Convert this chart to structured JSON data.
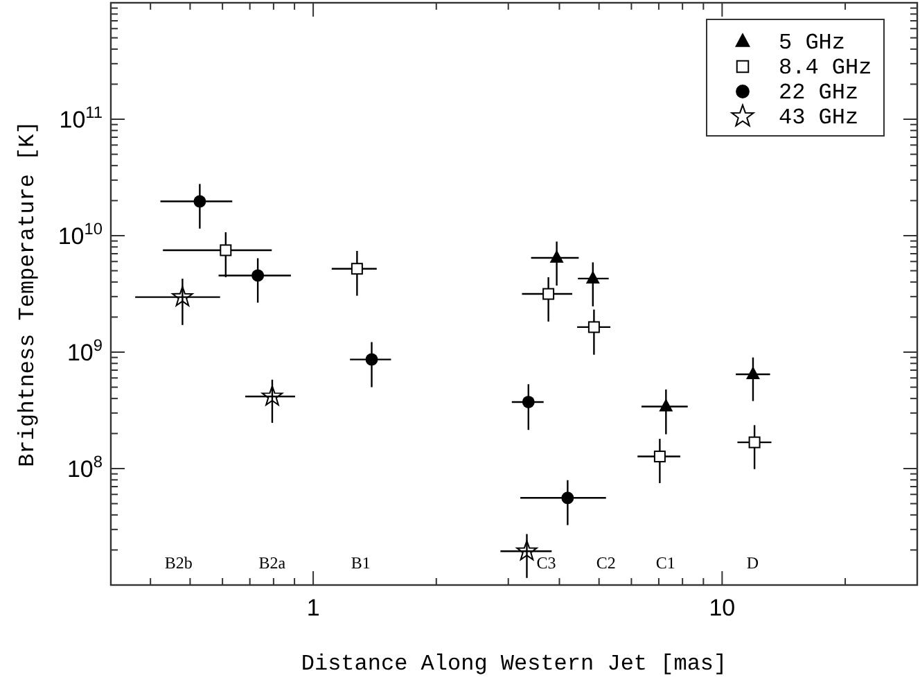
{
  "chart_data": {
    "type": "scatter",
    "xlabel": "Distance Along Western Jet [mas]",
    "ylabel": "Brightness Temperature [K]",
    "log": "xy",
    "xlim": [
      0.32,
      30
    ],
    "ylim": [
      10000000.0,
      1000000000000.0
    ],
    "xticks": [
      {
        "value": 0.4,
        "label": null
      },
      {
        "value": 0.5,
        "label": null
      },
      {
        "value": 0.6,
        "label": null
      },
      {
        "value": 0.7,
        "label": null
      },
      {
        "value": 0.8,
        "label": null
      },
      {
        "value": 0.9,
        "label": null
      },
      1,
      {
        "value": 2,
        "label": null
      },
      {
        "value": 3,
        "label": null
      },
      {
        "value": 4,
        "label": null
      },
      {
        "value": 5,
        "label": null
      },
      {
        "value": 6,
        "label": null
      },
      {
        "value": 7,
        "label": null
      },
      {
        "value": 8,
        "label": null
      },
      {
        "value": 9,
        "label": null
      },
      10,
      {
        "value": 20,
        "label": null
      },
      {
        "value": 30,
        "label": null
      }
    ],
    "yticks": [
      {
        "value": 20000000.0,
        "label": null
      },
      {
        "value": 30000000.0,
        "label": null
      },
      {
        "value": 40000000.0,
        "label": null
      },
      {
        "value": 50000000.0,
        "label": null
      },
      {
        "value": 60000000.0,
        "label": null
      },
      {
        "value": 70000000.0,
        "label": null
      },
      {
        "value": 80000000.0,
        "label": null
      },
      {
        "value": 90000000.0,
        "label": null
      },
      {
        "value": 100000000.0,
        "label": "10$^{8}$"
      },
      {
        "value": 200000000.0,
        "label": null
      },
      {
        "value": 300000000.0,
        "label": null
      },
      {
        "value": 400000000.0,
        "label": null
      },
      {
        "value": 500000000.0,
        "label": null
      },
      {
        "value": 600000000.0,
        "label": null
      },
      {
        "value": 700000000.0,
        "label": null
      },
      {
        "value": 800000000.0,
        "label": null
      },
      {
        "value": 900000000.0,
        "label": null
      },
      {
        "value": 1000000000.0,
        "label": "10$^{9}$"
      },
      {
        "value": 2000000000.0,
        "label": null
      },
      {
        "value": 3000000000.0,
        "label": null
      },
      {
        "value": 4000000000.0,
        "label": null
      },
      {
        "value": 5000000000.0,
        "label": null
      },
      {
        "value": 6000000000.0,
        "label": null
      },
      {
        "value": 7000000000.0,
        "label": null
      },
      {
        "value": 8000000000.0,
        "label": null
      },
      {
        "value": 9000000000.0,
        "label": null
      },
      {
        "value": 10000000000.0,
        "label": "10$^{10}$"
      },
      {
        "value": 20000000000.0,
        "label": null
      },
      {
        "value": 30000000000.0,
        "label": null
      },
      {
        "value": 40000000000.0,
        "label": null
      },
      {
        "value": 50000000000.0,
        "label": null
      },
      {
        "value": 60000000000.0,
        "label": null
      },
      {
        "value": 70000000000.0,
        "label": null
      },
      {
        "value": 80000000000.0,
        "label": null
      },
      {
        "value": 90000000000.0,
        "label": null
      },
      {
        "value": 100000000000.0,
        "label": "10$^{11}$"
      },
      {
        "value": 200000000000.0,
        "label": null
      },
      {
        "value": 300000000000.0,
        "label": null
      },
      {
        "value": 400000000000.0,
        "label": null
      },
      {
        "value": 500000000000.0,
        "label": null
      },
      {
        "value": 600000000000.0,
        "label": null
      },
      {
        "value": 700000000000.0,
        "label": null
      },
      {
        "value": 800000000000.0,
        "label": null
      },
      {
        "value": 900000000000.0,
        "label": null
      }
    ],
    "grid": false,
    "legend": "top right",
    "series": [
      {
        "name": "5 GHz",
        "color": "#000000",
        "marker": "triangle",
        "x": [
          3.94,
          4.83,
          7.29,
          11.9
        ],
        "values": [
          6450000000.0,
          4280000000.0,
          341000000.0,
          645000000.0
        ],
        "errors": [
          [
            3730000000.0,
            8900000000.0
          ],
          [
            2470000000.0,
            5900000000.0
          ],
          [
            197000000.0,
            478000000.0
          ],
          [
            380000000.0,
            900000000.0
          ]
        ],
        "xerrors": [
          [
            3.41,
            4.46
          ],
          [
            4.44,
            5.28
          ],
          [
            6.35,
            8.24
          ],
          [
            10.8,
            13.1
          ]
        ]
      },
      {
        "name": "8.4 GHz",
        "color": "#000000",
        "marker": "square",
        "x": [
          0.611,
          1.28,
          3.76,
          4.86,
          7.04,
          12.0
        ],
        "values": [
          7500000000.0,
          5200000000.0,
          3160000000.0,
          1640000000.0,
          127000000.0,
          168000000.0
        ],
        "errors": [
          [
            4400000000.0,
            10700000000.0
          ],
          [
            3050000000.0,
            7400000000.0
          ],
          [
            1830000000.0,
            4400000000.0
          ],
          [
            950000000.0,
            2320000000.0
          ],
          [
            75000000.0,
            180000000.0
          ],
          [
            99000000.0,
            236000000.0
          ]
        ],
        "xerrors": [
          [
            0.429,
            0.792
          ],
          [
            1.11,
            1.43
          ],
          [
            3.24,
            4.3
          ],
          [
            4.42,
            5.33
          ],
          [
            6.21,
            7.9
          ],
          [
            10.9,
            13.2
          ]
        ]
      },
      {
        "name": "22 GHz",
        "color": "#000000",
        "marker": "circle",
        "x": [
          0.528,
          0.732,
          1.39,
          3.36,
          4.19
        ],
        "values": [
          19700000000.0,
          4550000000.0,
          865000000.0,
          373000000.0,
          56000000.0
        ],
        "errors": [
          [
            11500000000.0,
            27800000000.0
          ],
          [
            2660000000.0,
            6400000000.0
          ],
          [
            500000000.0,
            1220000000.0
          ],
          [
            215000000.0,
            530000000.0
          ],
          [
            32700000.0,
            79500000.0
          ]
        ],
        "xerrors": [
          [
            0.423,
            0.634
          ],
          [
            0.587,
            0.882
          ],
          [
            1.23,
            1.55
          ],
          [
            3.06,
            3.66
          ],
          [
            3.21,
            5.2
          ]
        ]
      },
      {
        "name": "43 GHz",
        "color": "#000000",
        "marker": "star",
        "x": [
          0.479,
          0.794,
          3.33
        ],
        "values": [
          2970000000.0,
          416000000.0,
          19500000.0
        ],
        "errors": [
          [
            1710000000.0,
            4270000000.0
          ],
          [
            247000000.0,
            580000000.0
          ],
          [
            11500000.0,
            27400000.0
          ]
        ],
        "xerrors": [
          [
            0.367,
            0.592
          ],
          [
            0.682,
            0.903
          ],
          [
            2.87,
            3.83
          ]
        ]
      }
    ],
    "annotations": [
      "B2b",
      "B2a",
      "B1",
      "C3",
      "C2",
      "C1",
      "D"
    ]
  }
}
